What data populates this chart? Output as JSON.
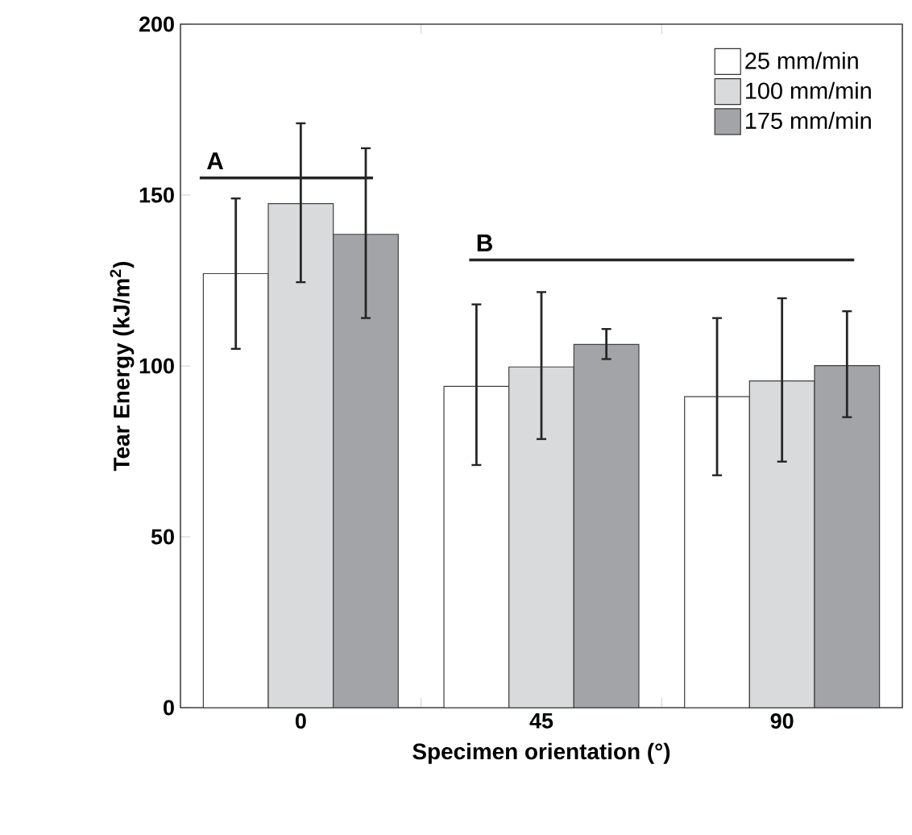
{
  "chart_data": {
    "type": "bar",
    "xlabel": "Specimen orientation (°)",
    "ylabel": "Tear Energy (kJ/m$^{2}$)",
    "categories": [
      "0",
      "45",
      "90"
    ],
    "series": [
      {
        "name": "25 mm/min",
        "color": "#ffffff",
        "values": [
          127,
          94,
          91
        ],
        "errors": [
          [
            105,
            149
          ],
          [
            71,
            118
          ],
          [
            68,
            114
          ]
        ]
      },
      {
        "name": "100 mm/min",
        "color": "#d9dadc",
        "values": [
          147.5,
          99.7,
          95.6
        ],
        "errors": [
          [
            124.5,
            171
          ],
          [
            78.6,
            121.6
          ],
          [
            72,
            119.8
          ]
        ]
      },
      {
        "name": "175 mm/min",
        "color": "#a3a4a8",
        "values": [
          138.5,
          106.3,
          100.1
        ],
        "errors": [
          [
            114,
            163.7
          ],
          [
            102,
            110.8
          ],
          [
            85,
            116
          ]
        ]
      }
    ],
    "ylim": [
      0,
      200
    ],
    "yticks": [
      0,
      50,
      100,
      150,
      200
    ],
    "annotations": [
      "A",
      "B"
    ],
    "legend": "top right",
    "grid": false
  }
}
